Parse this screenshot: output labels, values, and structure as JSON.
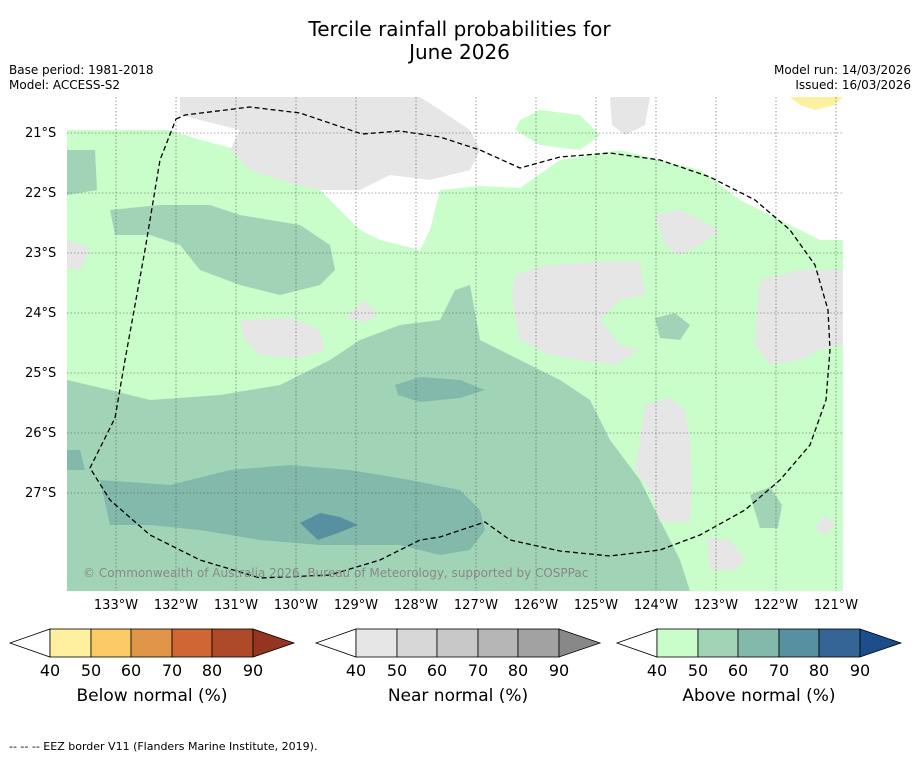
{
  "title_line1": "Tercile rainfall probabilities for",
  "title_line2": "June 2026",
  "base_period": "Base period: 1981-2018",
  "model": "Model: ACCESS-S2",
  "model_run": "Model run: 14/03/2026",
  "issued": "Issued: 16/03/2026",
  "copyright": "© Commonwealth of Australia 2026, Bureau of Meteorology, supported by COSPPac",
  "lat_labels": [
    "21°S",
    "22°S",
    "23°S",
    "24°S",
    "25°S",
    "26°S",
    "27°S"
  ],
  "lon_labels": [
    "133°W",
    "132°W",
    "131°W",
    "130°W",
    "129°W",
    "128°W",
    "127°W",
    "126°W",
    "125°W",
    "124°W",
    "123°W",
    "122°W",
    "121°W"
  ],
  "colorbars": [
    {
      "label": "Below normal (%)",
      "ticks": [
        "40",
        "50",
        "60",
        "70",
        "80",
        "90"
      ],
      "colors": [
        "#fff0a0",
        "#fdcb65",
        "#e09548",
        "#cf6633",
        "#ae4a29",
        "#963422"
      ]
    },
    {
      "label": "Near normal (%)",
      "ticks": [
        "40",
        "50",
        "60",
        "70",
        "80",
        "90"
      ],
      "colors": [
        "#e6e6e6",
        "#d7d7d7",
        "#c8c8c8",
        "#b6b6b6",
        "#a2a2a2",
        "#888888"
      ]
    },
    {
      "label": "Above normal (%)",
      "ticks": [
        "40",
        "50",
        "60",
        "70",
        "80",
        "90"
      ],
      "colors": [
        "#c9fdc9",
        "#a1d4b6",
        "#83b9aa",
        "#5790a0",
        "#356597",
        "#1a4d8a"
      ]
    }
  ],
  "footnote": "--  --  -- EEZ border V11 (Flanders Marine Institute, 2019)."
}
